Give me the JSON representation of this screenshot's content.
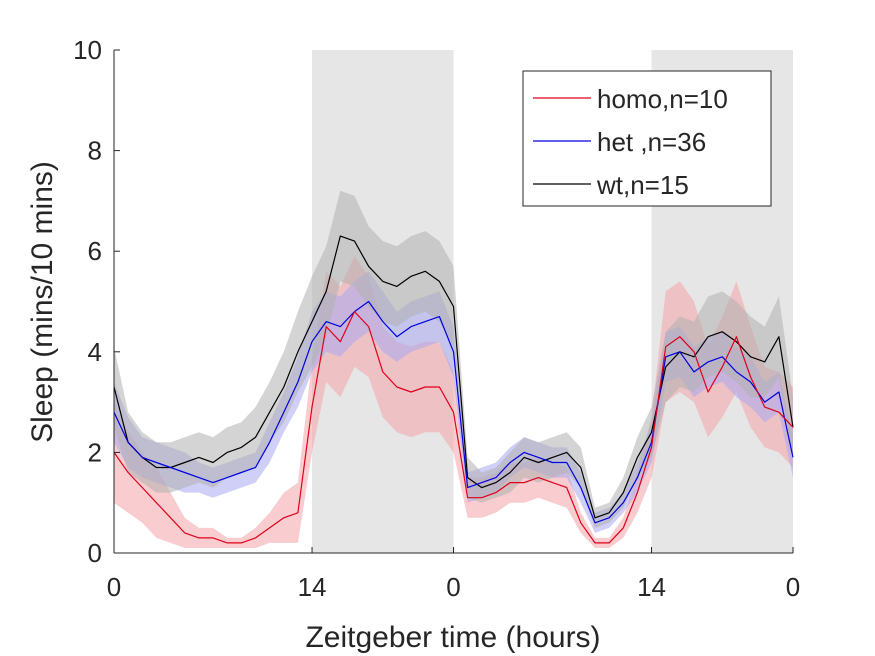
{
  "chart_data": {
    "type": "line",
    "title": "",
    "xlabel": "Zeitgeber time (hours)",
    "ylabel": "Sleep (mins/10 mins)",
    "xlim": [
      0,
      48
    ],
    "ylim": [
      0,
      10
    ],
    "x_ticks": [
      0,
      14,
      24,
      38,
      48
    ],
    "x_tick_labels": [
      "0",
      "14",
      "0",
      "14",
      "0"
    ],
    "y_ticks": [
      0,
      2,
      4,
      6,
      8,
      10
    ],
    "y_tick_labels": [
      "0",
      "2",
      "4",
      "6",
      "8",
      "10"
    ],
    "dark_periods": [
      [
        14,
        24
      ],
      [
        38,
        48
      ]
    ],
    "grid": false,
    "legend_position": "top-right",
    "shading": "semi-transparent band around each line (error)",
    "x": [
      0,
      1,
      2,
      3,
      4,
      5,
      6,
      7,
      8,
      9,
      10,
      11,
      12,
      13,
      14,
      15,
      16,
      17,
      18,
      19,
      20,
      21,
      22,
      23,
      24,
      25,
      26,
      27,
      28,
      29,
      30,
      31,
      32,
      33,
      34,
      35,
      36,
      37,
      38,
      39,
      40,
      41,
      42,
      43,
      44,
      45,
      46,
      47,
      48
    ],
    "series": [
      {
        "name": "homo,n=10",
        "color": "#e0001a",
        "band_color": "#f4a3a8",
        "values": [
          2.0,
          1.6,
          1.3,
          1.0,
          0.7,
          0.4,
          0.3,
          0.3,
          0.2,
          0.2,
          0.3,
          0.5,
          0.7,
          0.8,
          2.9,
          4.5,
          4.2,
          4.8,
          4.5,
          3.6,
          3.3,
          3.2,
          3.3,
          3.3,
          2.8,
          1.1,
          1.1,
          1.2,
          1.4,
          1.4,
          1.5,
          1.4,
          1.3,
          0.6,
          0.2,
          0.2,
          0.5,
          1.2,
          2.1,
          4.1,
          4.3,
          4.0,
          3.2,
          3.7,
          4.3,
          3.5,
          2.9,
          2.8,
          2.5
        ],
        "band": [
          1.0,
          0.8,
          0.7,
          0.7,
          0.5,
          0.3,
          0.2,
          0.2,
          0.1,
          0.1,
          0.2,
          0.3,
          0.5,
          0.6,
          0.9,
          1.1,
          1.1,
          1.1,
          1.0,
          0.9,
          0.9,
          0.9,
          0.9,
          0.9,
          0.8,
          0.4,
          0.4,
          0.4,
          0.4,
          0.4,
          0.4,
          0.4,
          0.4,
          0.2,
          0.1,
          0.1,
          0.2,
          0.4,
          0.6,
          1.1,
          1.1,
          1.0,
          0.9,
          1.0,
          1.1,
          1.0,
          0.8,
          0.8,
          0.8
        ]
      },
      {
        "name": "het ,n=36",
        "color": "#0000e0",
        "band_color": "#a8a8f0",
        "values": [
          2.8,
          2.2,
          1.9,
          1.8,
          1.7,
          1.6,
          1.5,
          1.4,
          1.5,
          1.6,
          1.7,
          2.2,
          2.8,
          3.4,
          4.2,
          4.6,
          4.5,
          4.8,
          5.0,
          4.6,
          4.3,
          4.5,
          4.6,
          4.7,
          4.0,
          1.3,
          1.4,
          1.5,
          1.8,
          2.0,
          1.9,
          1.8,
          1.8,
          1.3,
          0.6,
          0.7,
          1.0,
          1.5,
          2.2,
          3.9,
          4.0,
          3.6,
          3.8,
          3.9,
          3.6,
          3.4,
          3.0,
          3.2,
          1.9
        ],
        "band": [
          0.6,
          0.5,
          0.4,
          0.4,
          0.4,
          0.4,
          0.3,
          0.3,
          0.3,
          0.3,
          0.3,
          0.4,
          0.4,
          0.5,
          0.6,
          0.6,
          0.6,
          0.6,
          0.6,
          0.6,
          0.5,
          0.5,
          0.5,
          0.5,
          0.5,
          0.3,
          0.3,
          0.3,
          0.3,
          0.3,
          0.3,
          0.3,
          0.3,
          0.3,
          0.2,
          0.2,
          0.2,
          0.3,
          0.4,
          0.5,
          0.5,
          0.5,
          0.5,
          0.5,
          0.5,
          0.5,
          0.4,
          0.4,
          0.4
        ]
      },
      {
        "name": "wt,n=15",
        "color": "#000000",
        "band_color": "#b0b0b0",
        "values": [
          3.3,
          2.2,
          1.9,
          1.7,
          1.7,
          1.8,
          1.9,
          1.8,
          2.0,
          2.1,
          2.3,
          2.8,
          3.3,
          4.0,
          4.6,
          5.2,
          6.3,
          6.2,
          5.7,
          5.4,
          5.3,
          5.5,
          5.6,
          5.4,
          4.9,
          1.5,
          1.3,
          1.4,
          1.6,
          1.9,
          1.8,
          1.9,
          2.0,
          1.7,
          0.7,
          0.8,
          1.2,
          1.9,
          2.4,
          3.7,
          4.0,
          3.9,
          4.3,
          4.4,
          4.2,
          3.9,
          3.8,
          4.3,
          2.5
        ],
        "band": [
          0.8,
          0.6,
          0.5,
          0.5,
          0.5,
          0.5,
          0.5,
          0.5,
          0.5,
          0.5,
          0.6,
          0.6,
          0.7,
          0.8,
          0.9,
          0.9,
          0.9,
          0.9,
          0.8,
          0.8,
          0.8,
          0.8,
          0.8,
          0.8,
          0.8,
          0.4,
          0.3,
          0.3,
          0.4,
          0.4,
          0.4,
          0.4,
          0.4,
          0.4,
          0.2,
          0.2,
          0.3,
          0.4,
          0.5,
          0.7,
          0.7,
          0.7,
          0.8,
          0.8,
          0.8,
          0.8,
          0.7,
          0.8,
          0.6
        ]
      }
    ]
  }
}
